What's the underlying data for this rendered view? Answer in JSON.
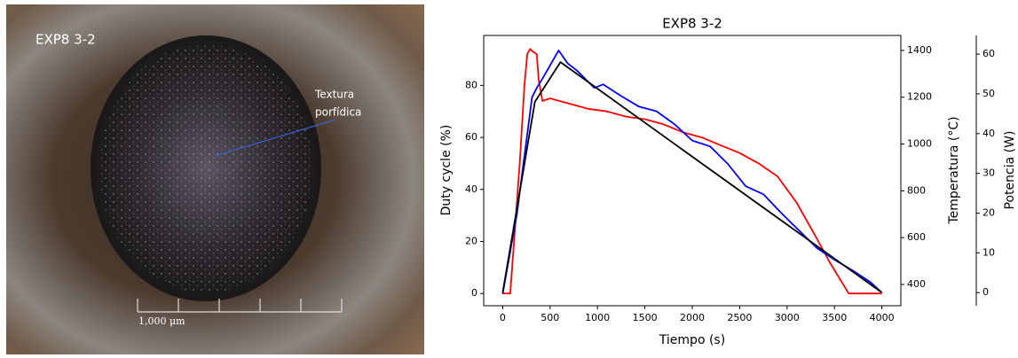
{
  "photo": {
    "label": "EXP8 3-2",
    "annotation": [
      "Textura",
      "porfídica"
    ],
    "scale_label": "1,000 μm"
  },
  "chart_data": {
    "type": "line",
    "title": "EXP8 3-2",
    "xlabel": "Tiempo (s)",
    "ylabel": "Duty cycle (%)",
    "y2label": "Temperatura (°C)",
    "y3label": "Potencia (W)",
    "xlim": [
      -200,
      4200
    ],
    "xticks": [
      0,
      500,
      1000,
      1500,
      2000,
      2500,
      3000,
      3500,
      4000
    ],
    "ylim": [
      -4.7,
      99.2
    ],
    "yticks": [
      0,
      20,
      40,
      60,
      80
    ],
    "y2lim": [
      309,
      1464
    ],
    "y2ticks": [
      400,
      600,
      800,
      1000,
      1200,
      1400
    ],
    "y3lim": [
      -3.3,
      64.7
    ],
    "y3ticks": [
      0,
      10,
      20,
      30,
      40,
      50,
      60
    ],
    "grid": false,
    "series": [
      {
        "color": "#ff0000",
        "axis": "y",
        "x": [
          0,
          80,
          120,
          180,
          230,
          260,
          290,
          320,
          360,
          380,
          420,
          500,
          600,
          700,
          900,
          1100,
          1300,
          1500,
          1700,
          1900,
          2100,
          2300,
          2500,
          2700,
          2900,
          3100,
          3300,
          3450,
          3550,
          3650,
          3800,
          4000
        ],
        "values": [
          0,
          0,
          20,
          50,
          80,
          92,
          94,
          93,
          92,
          82,
          74,
          75,
          74,
          73,
          71,
          70,
          68,
          67,
          65,
          62,
          60,
          57,
          54,
          50,
          45,
          35,
          22,
          12,
          6,
          0,
          0,
          0
        ]
      },
      {
        "color": "#0000ff",
        "axis": "y2",
        "x": [
          0,
          150,
          310,
          360,
          450,
          590,
          685,
          780,
          967,
          1060,
          1250,
          1437,
          1624,
          1812,
          2000,
          2188,
          2375,
          2563,
          2751,
          2939,
          3127,
          3315,
          3502,
          3690,
          3878,
          4000
        ],
        "values": [
          360,
          700,
          1200,
          1240,
          1300,
          1400,
          1345,
          1315,
          1240,
          1255,
          1205,
          1160,
          1140,
          1085,
          1015,
          990,
          915,
          820,
          785,
          705,
          630,
          555,
          505,
          460,
          410,
          365
        ]
      },
      {
        "color": "#000000",
        "axis": "y3",
        "x": [
          0,
          340,
          610,
          4000
        ],
        "values": [
          0,
          48,
          58,
          0
        ]
      }
    ]
  }
}
